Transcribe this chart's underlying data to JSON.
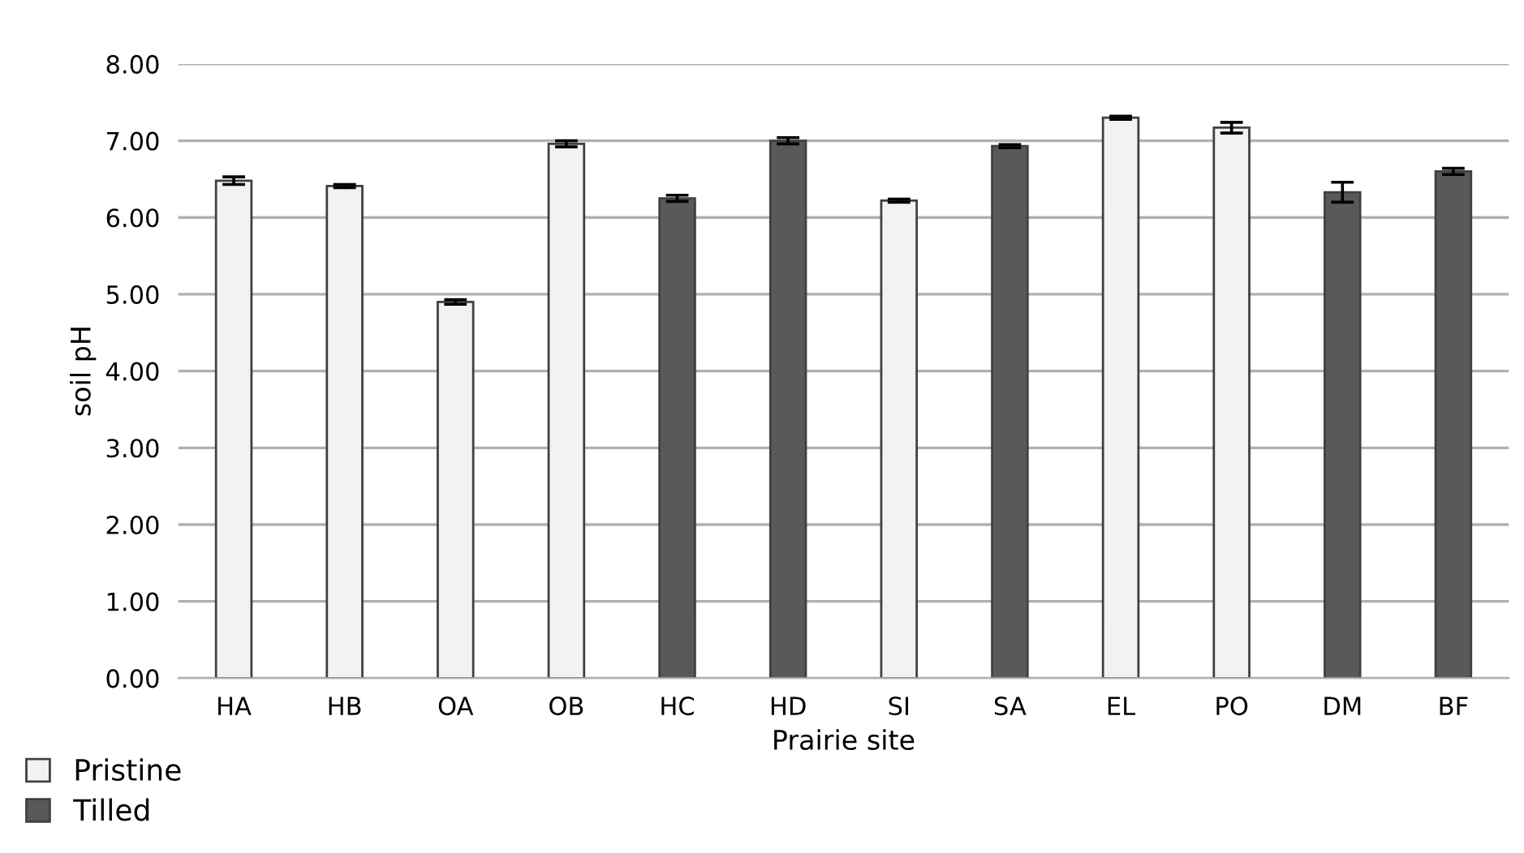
{
  "chart_data": {
    "type": "bar",
    "xlabel": "Prairie site",
    "ylabel": "soil pH",
    "categories": [
      "HA",
      "HB",
      "OA",
      "OB",
      "HC",
      "HD",
      "SI",
      "SA",
      "EL",
      "PO",
      "DM",
      "BF"
    ],
    "series": [
      {
        "name": "Pristine",
        "color": "#f2f2f2",
        "values": [
          6.48,
          6.41,
          4.9,
          6.96,
          null,
          null,
          6.22,
          null,
          7.3,
          7.17,
          null,
          null
        ],
        "errors": [
          0.05,
          0.02,
          0.03,
          0.04,
          null,
          null,
          0.02,
          null,
          0.02,
          0.07,
          null,
          null
        ]
      },
      {
        "name": "Tilled",
        "color": "#595959",
        "values": [
          null,
          null,
          null,
          null,
          6.25,
          7.0,
          null,
          6.93,
          null,
          null,
          6.33,
          6.6
        ],
        "errors": [
          null,
          null,
          null,
          null,
          0.04,
          0.04,
          null,
          0.02,
          null,
          null,
          0.13,
          0.04
        ]
      }
    ],
    "ylim": [
      0,
      8
    ],
    "yticks": [
      {
        "value": 0,
        "label": "0.00"
      },
      {
        "value": 1,
        "label": "1.00"
      },
      {
        "value": 2,
        "label": "2.00"
      },
      {
        "value": 3,
        "label": "3.00"
      },
      {
        "value": 4,
        "label": "4.00"
      },
      {
        "value": 5,
        "label": "5.00"
      },
      {
        "value": 6,
        "label": "6.00"
      },
      {
        "value": 7,
        "label": "7.00"
      },
      {
        "value": 8,
        "label": "8.00"
      }
    ],
    "grid": "y",
    "legend": "bottom left"
  }
}
